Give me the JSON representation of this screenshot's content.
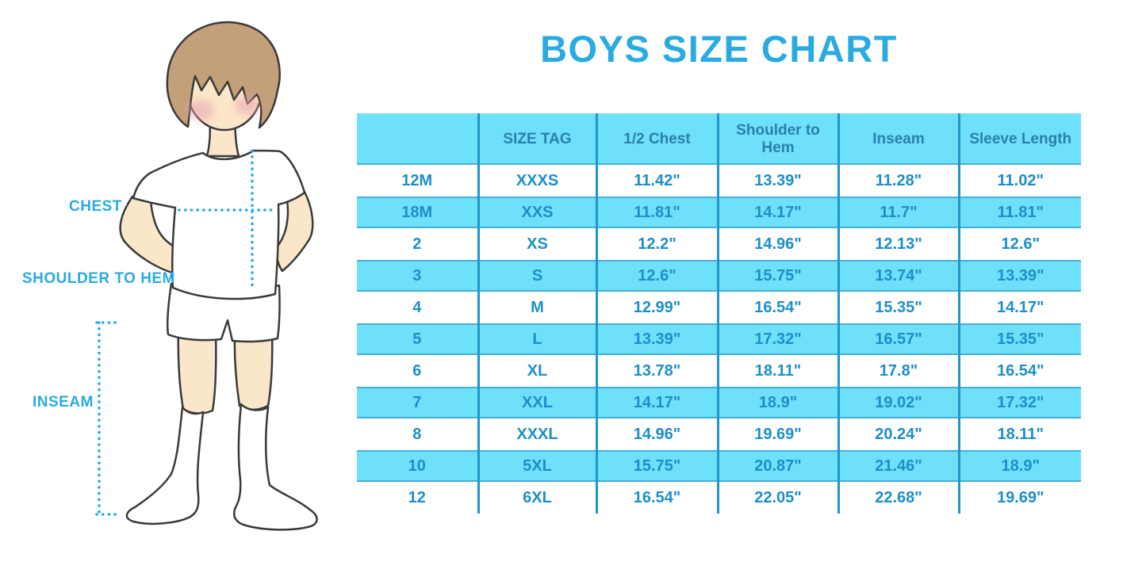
{
  "title": "BOYS SIZE CHART",
  "colors": {
    "accent_blue": "#29ABE2",
    "band_blue": "#6FE0FA",
    "divider_blue": "#1F96CE",
    "header_text": "#2A80AC",
    "cell_text": "#1D8FC8",
    "skin": "#FAE7C9",
    "hair": "#C3A079",
    "cheek": "#E9A0AE",
    "outline": "#3A3A3A"
  },
  "figure": {
    "description": "boy-measurement-illustration",
    "labels": {
      "chest": "CHEST",
      "shoulder_to_hem": "SHOULDER TO HEM",
      "inseam": "INSEAM"
    }
  },
  "chart_data": {
    "type": "table",
    "title": "BOYS SIZE CHART",
    "columns": [
      "",
      "SIZE TAG",
      "1/2 Chest",
      "Shoulder to Hem",
      "Inseam",
      "Sleeve Length"
    ],
    "rows": [
      [
        "12M",
        "XXXS",
        "11.42\"",
        "13.39\"",
        "11.28\"",
        "11.02\""
      ],
      [
        "18M",
        "XXS",
        "11.81\"",
        "14.17\"",
        "11.7\"",
        "11.81\""
      ],
      [
        "2",
        "XS",
        "12.2\"",
        "14.96\"",
        "12.13\"",
        "12.6\""
      ],
      [
        "3",
        "S",
        "12.6\"",
        "15.75\"",
        "13.74\"",
        "13.39\""
      ],
      [
        "4",
        "M",
        "12.99\"",
        "16.54\"",
        "15.35\"",
        "14.17\""
      ],
      [
        "5",
        "L",
        "13.39\"",
        "17.32\"",
        "16.57\"",
        "15.35\""
      ],
      [
        "6",
        "XL",
        "13.78\"",
        "18.11\"",
        "17.8\"",
        "16.54\""
      ],
      [
        "7",
        "XXL",
        "14.17\"",
        "18.9\"",
        "19.02\"",
        "17.32\""
      ],
      [
        "8",
        "XXXL",
        "14.96\"",
        "19.69\"",
        "20.24\"",
        "18.11\""
      ],
      [
        "10",
        "5XL",
        "15.75\"",
        "20.87\"",
        "21.46\"",
        "18.9\""
      ],
      [
        "12",
        "6XL",
        "16.54\"",
        "22.05\"",
        "22.68\"",
        "19.69\""
      ]
    ],
    "row_striping": "white / light-blue alternating, header light-blue",
    "legend_position": "none",
    "grid": "vertical dividers between columns only"
  }
}
